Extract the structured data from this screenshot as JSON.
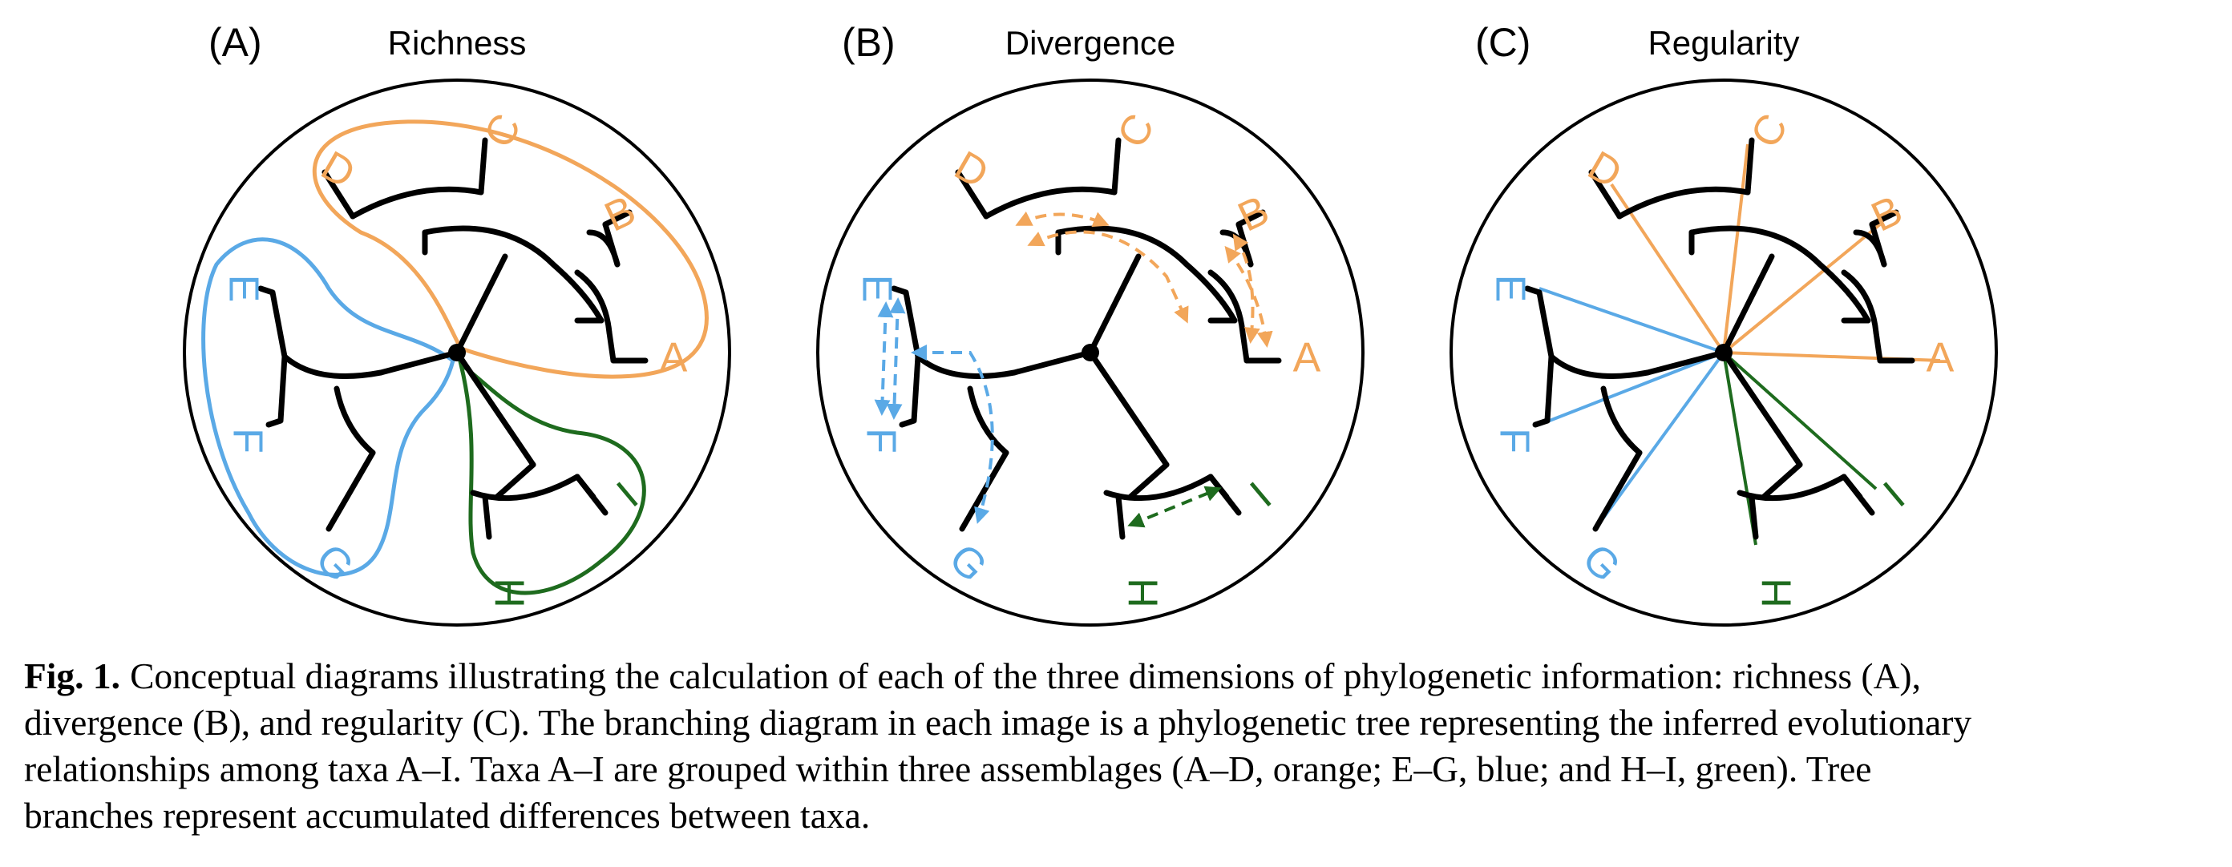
{
  "colors": {
    "orange": "#F2A65A",
    "blue": "#5AA9E6",
    "green": "#1E6B1E",
    "black": "#000000"
  },
  "panels": [
    {
      "letter": "(A)",
      "title": "Richness"
    },
    {
      "letter": "(B)",
      "title": "Divergence"
    },
    {
      "letter": "(C)",
      "title": "Regularity"
    }
  ],
  "taxa": {
    "A": {
      "label": "A",
      "group": "orange"
    },
    "B": {
      "label": "B",
      "group": "orange"
    },
    "C": {
      "label": "C",
      "group": "orange"
    },
    "D": {
      "label": "D",
      "group": "orange"
    },
    "E": {
      "label": "E",
      "group": "blue"
    },
    "F": {
      "label": "F",
      "group": "blue"
    },
    "G": {
      "label": "G",
      "group": "blue"
    },
    "H": {
      "label": "H",
      "group": "green"
    },
    "I": {
      "label": "I",
      "group": "green"
    }
  },
  "caption": {
    "lead": "Fig. 1.",
    "lines": [
      "Conceptual diagrams illustrating the calculation of each of the three dimensions of phylogenetic information: richness (A),",
      "divergence (B), and regularity (C). The branching diagram in each image is a phylogenetic tree representing the inferred evolutionary",
      "relationships among taxa A–I. Taxa A–I are grouped within three assemblages (A–D, orange; E–G, blue; and H–I, green). Tree",
      "branches represent accumulated differences between taxa."
    ]
  }
}
